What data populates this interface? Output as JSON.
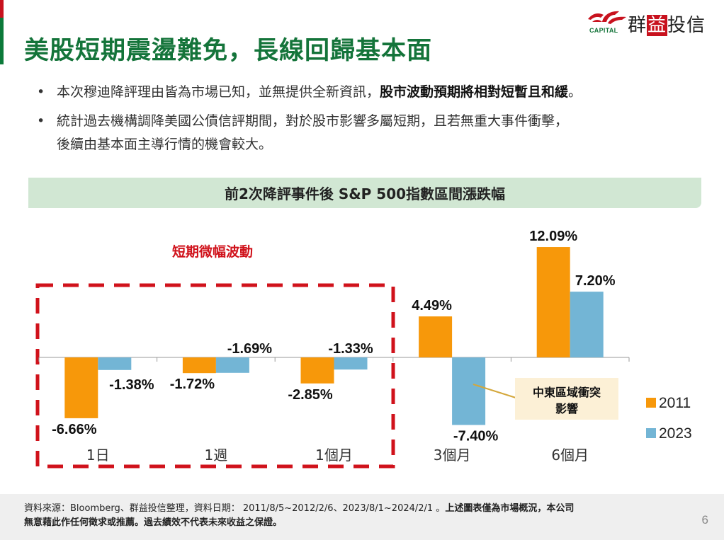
{
  "header": {
    "title": "美股短期震盪難免，長線回歸基本面",
    "logo": {
      "icon": "phoenix-logo-icon",
      "capital_label": "CAPITAL",
      "name_part1": "群",
      "name_highlight": "益",
      "name_part2": "投信"
    }
  },
  "bullets": [
    {
      "text": "本次穆迪降評理由皆為市場已知，並無提供全新資訊，",
      "bold": "股市波動預期將相對短暫且和緩",
      "tail": "。"
    },
    {
      "text": "統計過去機構調降美國公債信評期間，對於股市影響多屬短期，且若無重大事件衝擊，",
      "line2": "後續由基本面主導行情的機會較大。"
    }
  ],
  "bullet_symbol": "•",
  "chart_header": "前2次降評事件後 S&P 500指數區間漲跌幅",
  "chart_data": {
    "type": "bar",
    "title": "前2次降評事件後 S&P 500指數區間漲跌幅",
    "xlabel": "",
    "ylabel": "",
    "categories": [
      "1日",
      "1週",
      "1個月",
      "3個月",
      "6個月"
    ],
    "series": [
      {
        "name": "2011",
        "color": "#f7980a",
        "values": [
          -6.66,
          -1.72,
          -2.85,
          4.49,
          12.09
        ]
      },
      {
        "name": "2023",
        "color": "#73b5d5",
        "values": [
          -1.38,
          -1.69,
          -1.33,
          -7.4,
          7.2
        ]
      }
    ],
    "value_labels": {
      "2011": [
        "-6.66%",
        "-1.72%",
        "-2.85%",
        "4.49%",
        "12.09%"
      ],
      "2023": [
        "-1.38%",
        "-1.69%",
        "-1.33%",
        "-7.40%",
        "7.20%"
      ]
    },
    "ylim": [
      -8,
      14
    ],
    "grid": false,
    "legend": {
      "position": "right",
      "entries": [
        "2011",
        "2023"
      ]
    },
    "annotations": [
      {
        "text": "短期微幅波動",
        "color": "#d0121b",
        "style": "dashed-box",
        "covers": [
          "1日",
          "1週",
          "1個月"
        ]
      },
      {
        "text_line1": "中東區域衝突",
        "text_line2": "影響",
        "target_series": "2023",
        "target_category": "3個月",
        "background": "#fcf0d6"
      }
    ]
  },
  "footer": {
    "source_text": "資料來源：Bloomberg、群益投信整理，資料日期： 2011/8/5~2012/2/6、2023/8/1~2024/2/1 。",
    "disclaimer_bold_1": "上述圖表僅為市場概況，本公司",
    "disclaimer_bold_2": "無意藉此作任何徵求或推薦。過去績效不代表未來收益之保證。",
    "page_number": "6"
  }
}
